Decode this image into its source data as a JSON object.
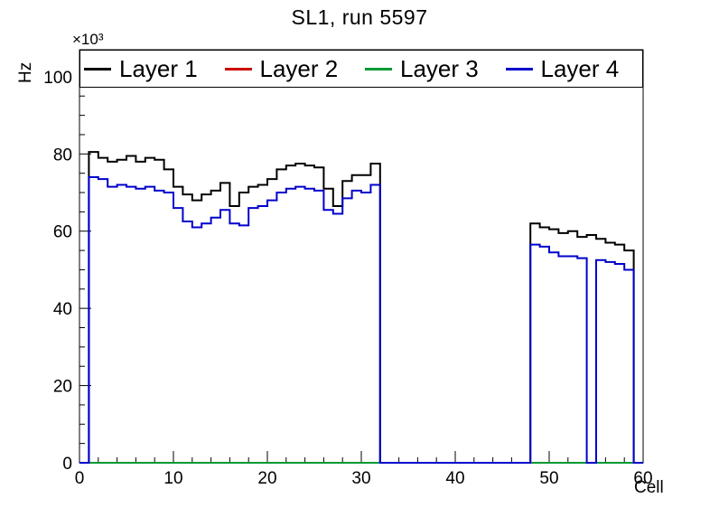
{
  "title": "SL1, run 5597",
  "chart_data": {
    "type": "line",
    "subtype": "step-histogram",
    "title": "SL1, run 5597",
    "xlabel": "Cell",
    "ylabel": "Hz",
    "y_multiplier_label": "×10³",
    "xlim": [
      0,
      60
    ],
    "ylim": [
      0,
      107
    ],
    "xticks": [
      0,
      10,
      20,
      30,
      40,
      50,
      60
    ],
    "yticks": [
      0,
      20,
      40,
      60,
      80,
      100
    ],
    "x_minor_step": 2,
    "y_minor_step": 5,
    "bin_start": 0,
    "bin_width": 1,
    "grid": false,
    "legend_position": "top-inside",
    "series": [
      {
        "name": "Layer 1",
        "color": "#000000",
        "values": [
          0,
          80.5,
          79,
          78,
          78.5,
          79.5,
          78,
          79,
          78.5,
          76,
          71.5,
          69.5,
          68,
          69.5,
          70.5,
          72.5,
          66.5,
          70,
          71.5,
          72,
          73.5,
          76,
          77,
          77.5,
          77,
          76.5,
          71,
          66.5,
          73,
          74.5,
          74.5,
          77.5,
          0,
          0,
          0,
          0,
          0,
          0,
          0,
          0,
          0,
          0,
          0,
          0,
          0,
          0,
          0,
          0,
          62,
          61,
          60.5,
          59.5,
          60,
          58.5,
          59,
          58,
          57,
          56.5,
          55,
          0
        ]
      },
      {
        "name": "Layer 2",
        "color": "#cc0000",
        "values": [
          0,
          0,
          0,
          0,
          0,
          0,
          0,
          0,
          0,
          0,
          0,
          0,
          0,
          0,
          0,
          0,
          0,
          0,
          0,
          0,
          0,
          0,
          0,
          0,
          0,
          0,
          0,
          0,
          0,
          0,
          0,
          0,
          0,
          0,
          0,
          0,
          0,
          0,
          0,
          0,
          0,
          0,
          0,
          0,
          0,
          0,
          0,
          0,
          0,
          0,
          0,
          0,
          0,
          0,
          0,
          0,
          0,
          0,
          0,
          0
        ]
      },
      {
        "name": "Layer 3",
        "color": "#009933",
        "values": [
          0,
          0,
          0,
          0,
          0,
          0,
          0,
          0,
          0,
          0,
          0,
          0,
          0,
          0,
          0,
          0,
          0,
          0,
          0,
          0,
          0,
          0,
          0,
          0,
          0,
          0,
          0,
          0,
          0,
          0,
          0,
          0,
          0,
          0,
          0,
          0,
          0,
          0,
          0,
          0,
          0,
          0,
          0,
          0,
          0,
          0,
          0,
          0,
          0,
          0,
          0,
          0,
          0,
          0,
          0,
          0,
          0,
          0,
          0,
          0
        ]
      },
      {
        "name": "Layer 4",
        "color": "#0000cc",
        "values": [
          0,
          74,
          73.5,
          71.5,
          72,
          71.5,
          71,
          71.5,
          70.5,
          70,
          66,
          62.5,
          61,
          62,
          63.5,
          65.5,
          62,
          61.5,
          66,
          66.5,
          68,
          70,
          71,
          71.5,
          71,
          70.5,
          65.5,
          64.5,
          68.5,
          70.5,
          70,
          72,
          0,
          0,
          0,
          0,
          0,
          0,
          0,
          0,
          0,
          0,
          0,
          0,
          0,
          0,
          0,
          0,
          56.5,
          56,
          54.5,
          53.5,
          53.5,
          53,
          0,
          52.5,
          52,
          51.5,
          50,
          0
        ]
      }
    ]
  }
}
